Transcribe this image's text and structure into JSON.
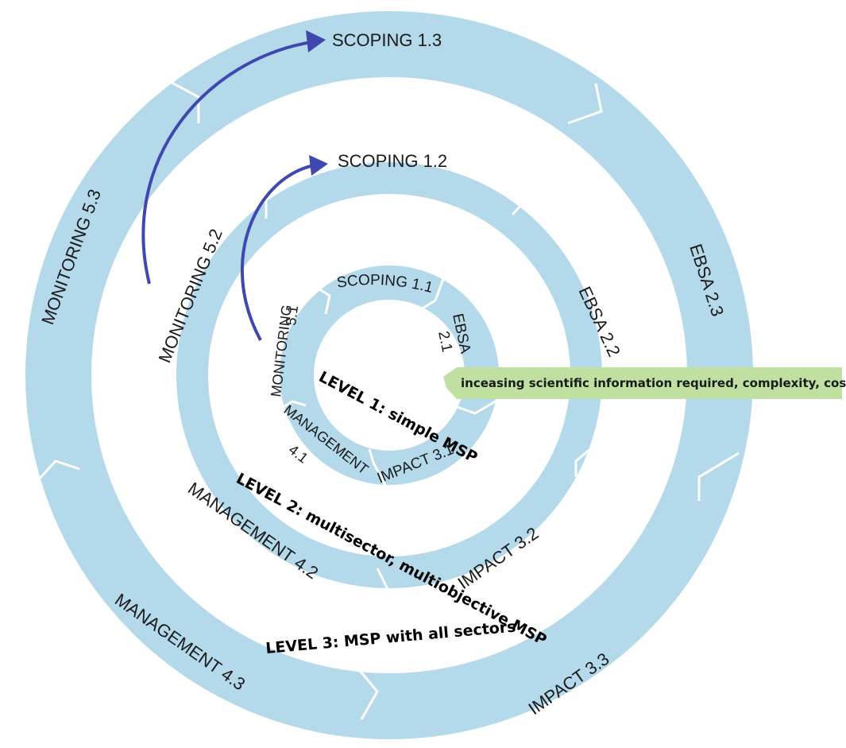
{
  "colors": {
    "ring_fill": "#b3d9eb",
    "arrow_blue": "#3f48b0",
    "banner_green": "#bfe0a0",
    "background": "#ffffff"
  },
  "rings": {
    "outer": {
      "segments": [
        "SCOPING 1.3",
        "EBSA 2.3",
        "IMPACT 3.3",
        "MANAGEMENT 4.3",
        "MONITORING 5.3"
      ]
    },
    "middle": {
      "segments": [
        "SCOPING 1.2",
        "EBSA 2.2",
        "IMPACT 3.2",
        "MANAGEMENT 4.2",
        "MONITORING 5.2"
      ]
    },
    "inner": {
      "segments": {
        "scoping": "SCOPING 1.1",
        "ebsa_l1": "EBSA",
        "ebsa_l2": "2.1",
        "impact": "IMPACT 3.1",
        "management_l1": "MANAGEMENT",
        "management_l2": "4.1",
        "monitoring_l1": "MONITORING",
        "monitoring_l2": "5.1"
      }
    }
  },
  "levels": {
    "level1": "LEVEL 1: simple MSP",
    "level2": "LEVEL 2: multisector, multiobjective MSP",
    "level3": "LEVEL 3: MSP with all sectors"
  },
  "banner": {
    "text": "inceasing scientific information required, complexity, costs"
  },
  "icons": {
    "arrow_outer": "curved-arrow-icon",
    "arrow_middle": "curved-arrow-icon"
  }
}
